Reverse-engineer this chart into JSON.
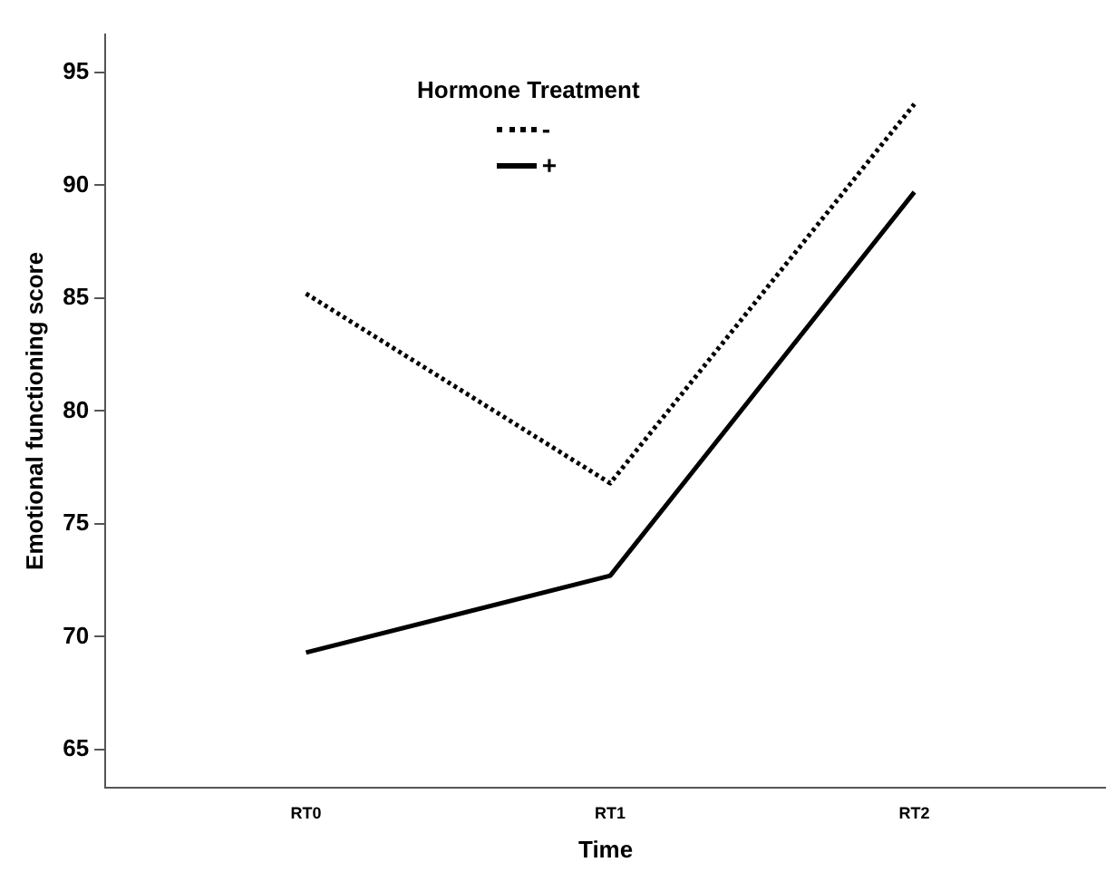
{
  "chart_data": {
    "type": "line",
    "xlabel": "Time",
    "ylabel": "Emotional functioning score",
    "legend_title": "Hormone Treatment",
    "legend": "top",
    "grid": false,
    "marker": "none",
    "categories": [
      "RT0",
      "RT1",
      "RT2"
    ],
    "ylim": [
      63.3,
      96.7
    ],
    "yticks": [
      65,
      70,
      75,
      80,
      85,
      90,
      95
    ],
    "series": [
      {
        "name": "-",
        "color": "#000000",
        "line_style": "dotted",
        "values": [
          85.2,
          76.8,
          93.6
        ]
      },
      {
        "name": "+",
        "color": "#000000",
        "line_style": "solid",
        "values": [
          69.3,
          72.7,
          89.7
        ]
      }
    ]
  }
}
